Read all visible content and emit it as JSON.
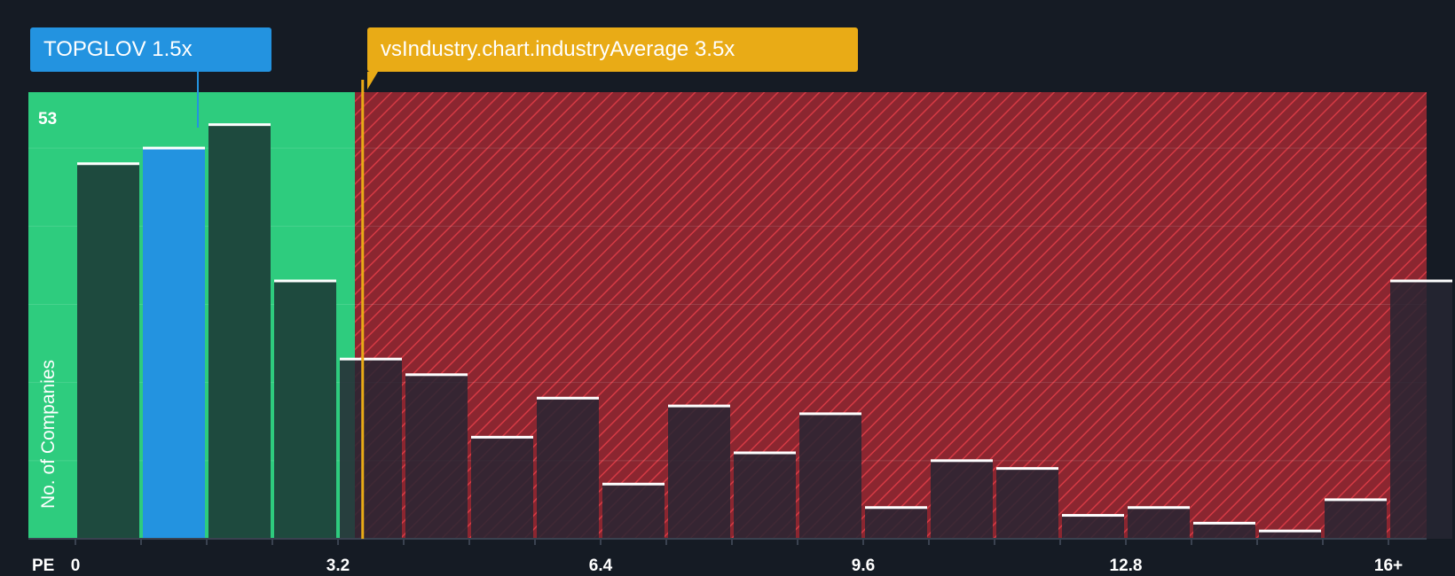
{
  "chart_data": {
    "type": "bar",
    "title": "",
    "xlabel": "PE",
    "ylabel": "No. of Companies",
    "y_max_label": "53",
    "ylim": [
      0,
      55
    ],
    "x_range": [
      0,
      16
    ],
    "bin_width": 0.8,
    "bin_starts": [
      0,
      0.8,
      1.6,
      2.4,
      3.2,
      4.0,
      4.8,
      5.6,
      6.4,
      7.2,
      8.0,
      8.8,
      9.6,
      10.4,
      11.2,
      12.0,
      12.8,
      13.6,
      14.4,
      15.2,
      16.0
    ],
    "values": [
      48,
      50,
      53,
      33,
      23,
      21,
      13,
      18,
      7,
      17,
      11,
      16,
      4,
      10,
      9,
      3,
      4,
      2,
      1,
      5,
      33
    ],
    "x_ticks": [
      "0",
      "3.2",
      "6.4",
      "9.6",
      "12.8",
      "16+"
    ],
    "x_tick_values": [
      0,
      3.2,
      6.4,
      9.6,
      12.8,
      16
    ],
    "company": {
      "ticker": "TOPGLOV",
      "pe": 1.5,
      "label": "TOPGLOV 1.5x"
    },
    "industry": {
      "pe": 3.5,
      "label": "vsIndustry.chart.industryAverage 3.5x"
    },
    "colors": {
      "background": "#151b24",
      "fair_zone": "#2ecc7e",
      "overvalued_zone": "#8b2630",
      "hatch": "#d63a44",
      "bar_fair": "#1e4a3e",
      "bar_over": "#262633",
      "bar_company": "#2393e0",
      "bar_top": "#ffffff",
      "company_label": "#2393e0",
      "industry_label": "#e9ab16"
    }
  }
}
